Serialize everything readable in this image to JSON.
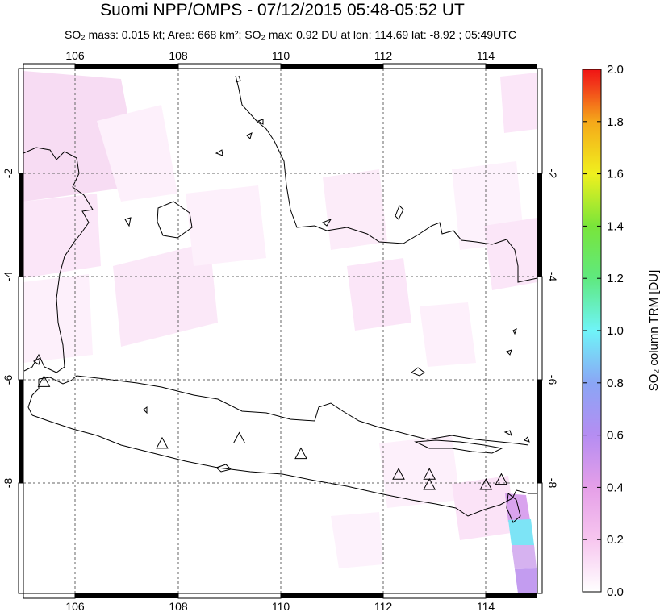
{
  "header": {
    "title": "Suomi NPP/OMPS - 07/12/2015 05:48-05:52 UT",
    "subtitle": "SO₂ mass: 0.015 kt; Area: 668 km²; SO₂ max: 0.92 DU at lon: 114.69 lat: -8.92 ; 05:49UTC"
  },
  "map": {
    "lon_ticks": [
      "106",
      "108",
      "110",
      "112",
      "114"
    ],
    "lat_ticks_left": [
      "-2",
      "-4",
      "-6",
      "-8"
    ],
    "lat_ticks_right": [
      "-2",
      "-4",
      "-6",
      "-8"
    ],
    "lon_range": [
      105.0,
      115.0
    ],
    "lat_range": [
      -10.2,
      0.0
    ],
    "gridlines": true,
    "volcano_marker": "triangle-outline",
    "volcanoes": [
      {
        "lon": 105.4,
        "lat": -6.1
      },
      {
        "lon": 107.7,
        "lat": -7.3
      },
      {
        "lon": 109.2,
        "lat": -7.2
      },
      {
        "lon": 110.4,
        "lat": -7.5
      },
      {
        "lon": 112.3,
        "lat": -7.9
      },
      {
        "lon": 112.9,
        "lat": -7.9
      },
      {
        "lon": 112.9,
        "lat": -8.1
      },
      {
        "lon": 114.0,
        "lat": -8.1
      },
      {
        "lon": 114.3,
        "lat": -8.0
      }
    ]
  },
  "colorbar": {
    "label": "SO₂ column TRM [DU]",
    "ticks": [
      "0.0",
      "0.2",
      "0.4",
      "0.6",
      "0.8",
      "1.0",
      "1.2",
      "1.4",
      "1.6",
      "1.8",
      "2.0"
    ],
    "range": [
      0.0,
      2.0
    ],
    "colors": [
      "#ffffff",
      "#f7c6ef",
      "#e59fe8",
      "#b58df2",
      "#8aa6f5",
      "#6ff4f8",
      "#5fe97f",
      "#79e53a",
      "#f0f01e",
      "#f5a81a",
      "#f23a1a",
      "#f01414"
    ]
  }
}
